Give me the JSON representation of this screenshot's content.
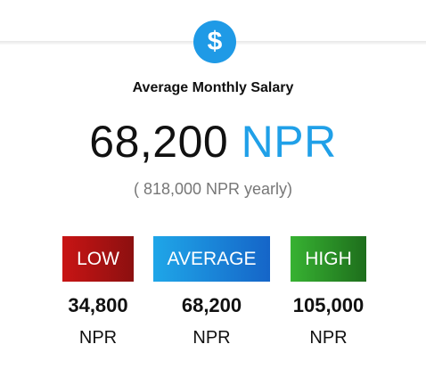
{
  "header": {
    "icon": "$",
    "title": "Average Monthly Salary"
  },
  "summary": {
    "amount": "68,200",
    "currency": "NPR",
    "yearly": "( 818,000 NPR yearly)"
  },
  "levels": [
    {
      "label": "LOW",
      "amount": "34,800",
      "currency": "NPR"
    },
    {
      "label": "AVERAGE",
      "amount": "68,200",
      "currency": "NPR"
    },
    {
      "label": "HIGH",
      "amount": "105,000",
      "currency": "NPR"
    }
  ]
}
